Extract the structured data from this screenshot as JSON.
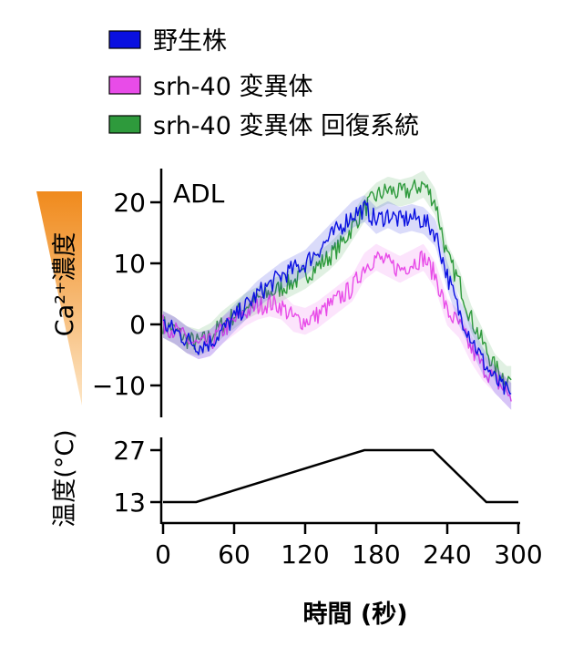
{
  "chart_data": [
    {
      "type": "line",
      "panel_label": "ADL",
      "ylabel": "Ca²⁺濃度",
      "xlim": [
        0,
        300
      ],
      "ylim": [
        -15,
        26
      ],
      "yticks": [
        20,
        10,
        0,
        -10
      ],
      "ytick_labels": [
        "20",
        "10",
        "0",
        "−10"
      ],
      "grid": false,
      "legend_position": "top-left",
      "x": [
        0,
        10,
        20,
        30,
        40,
        50,
        60,
        70,
        80,
        90,
        100,
        110,
        120,
        130,
        140,
        150,
        160,
        170,
        180,
        190,
        200,
        210,
        220,
        230,
        240,
        250,
        260,
        270,
        280,
        290,
        295
      ],
      "series": [
        {
          "name": "野生株",
          "color": "#0a10e0",
          "values": [
            0,
            -1,
            -2.5,
            -3.5,
            -3,
            -1,
            1,
            3,
            5,
            6.5,
            8,
            9,
            10,
            12,
            14,
            16,
            18,
            19,
            17,
            18,
            17,
            17.5,
            17,
            15,
            8,
            2,
            -2,
            -6,
            -9,
            -11,
            -12
          ]
        },
        {
          "name": "srh-40 変異体",
          "color": "#e84ce8",
          "values": [
            0,
            -1,
            -2.5,
            -3.5,
            -3,
            -1,
            0.5,
            2,
            3,
            3.5,
            3,
            1,
            0.5,
            1.5,
            3,
            4.5,
            6,
            9.5,
            11,
            10,
            9,
            10,
            11,
            8,
            2,
            0,
            -4,
            -7,
            -9,
            -11,
            -12
          ]
        },
        {
          "name": "srh-40 変異体 回復系統",
          "color": "#2e9a3c",
          "values": [
            0,
            -1,
            -2.5,
            -3,
            -2,
            0,
            1.5,
            3,
            4,
            5,
            6,
            7,
            8,
            9.5,
            11,
            13,
            16,
            19,
            21,
            22,
            21.5,
            22,
            23,
            20,
            11,
            7,
            1,
            -3,
            -7,
            -9,
            -9
          ]
        }
      ]
    },
    {
      "type": "line",
      "ylabel": "温度(°C)",
      "xlabel": "時間 (秒)",
      "xlim": [
        0,
        300
      ],
      "xticks": [
        0,
        60,
        120,
        180,
        240,
        300
      ],
      "ylim": [
        10,
        29
      ],
      "yticks": [
        27,
        13
      ],
      "grid": false,
      "series": [
        {
          "x": [
            0,
            28,
            170,
            228,
            273,
            300
          ],
          "values": [
            13,
            13,
            27,
            27,
            13,
            13
          ],
          "color": "#000000"
        }
      ]
    }
  ]
}
